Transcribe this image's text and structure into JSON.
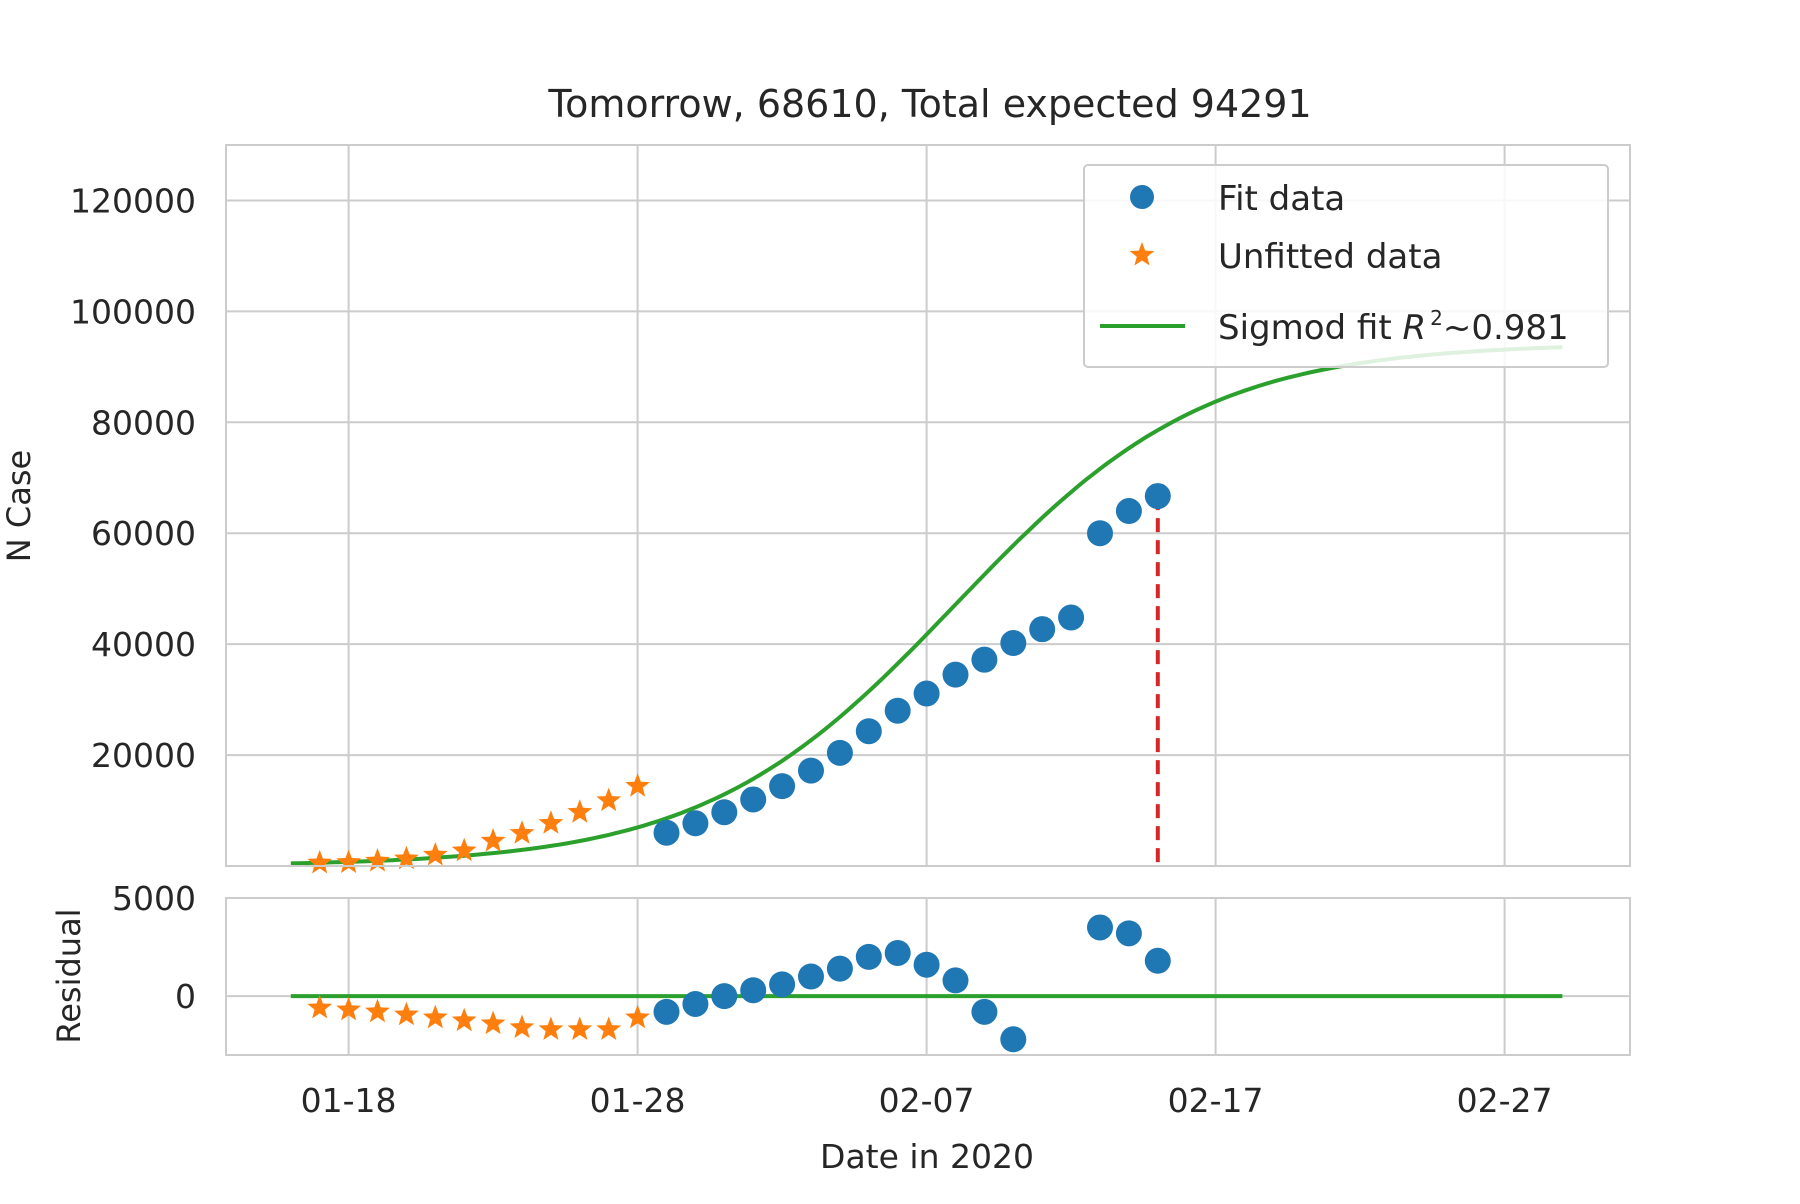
{
  "chart_data": {
    "type": "scatter",
    "title": "Tomorrow, 68610, Total expected 94291",
    "xlabel": "Date in 2020",
    "ylabel_main": "N Case",
    "ylabel_residual": "Residual",
    "x_dates": [
      "01-16",
      "01-17",
      "01-18",
      "01-19",
      "01-20",
      "01-21",
      "01-22",
      "01-23",
      "01-24",
      "01-25",
      "01-26",
      "01-27",
      "01-28",
      "01-29",
      "01-30",
      "01-31",
      "02-01",
      "02-02",
      "02-03",
      "02-04",
      "02-05",
      "02-06",
      "02-07",
      "02-08",
      "02-09",
      "02-10",
      "02-11",
      "02-12",
      "02-13",
      "02-14",
      "02-15",
      "02-16",
      "02-17",
      "02-18",
      "02-19",
      "02-20",
      "02-21",
      "02-22",
      "02-23",
      "02-24",
      "02-25",
      "02-26",
      "02-27",
      "02-28",
      "02-29"
    ],
    "x_tick_labels": [
      "01-18",
      "01-28",
      "02-07",
      "02-17",
      "02-27"
    ],
    "main_ylim": [
      0,
      130000
    ],
    "main_yticks": [
      20000,
      40000,
      60000,
      80000,
      100000,
      120000
    ],
    "residual_ylim": [
      -3000,
      5000
    ],
    "residual_yticks": [
      0,
      5000
    ],
    "grid": true,
    "legend_placement": "top-right",
    "legend": {
      "fit": "Fit data",
      "unfitted": "Unfitted data",
      "sigmoid_prefix": "Sigmod fit ",
      "sigmoid_r": "R",
      "sigmoid_sup": "2",
      "sigmoid_suffix": "~0.981"
    },
    "colors": {
      "fit": "#1f77b4",
      "unfitted": "#ff7f0e",
      "sigmoid": "#2ca02c",
      "marker_line": "#d62728"
    },
    "marker_line_date": "02-15",
    "sigmoid": {
      "L": 94291,
      "x0_date": "02-08",
      "k": 0.23
    },
    "series": [
      {
        "name": "Unfitted data",
        "dates": [
          "01-17",
          "01-18",
          "01-19",
          "01-20",
          "01-21",
          "01-22",
          "01-23",
          "01-24",
          "01-25",
          "01-26",
          "01-27",
          "01-28"
        ],
        "values": [
          550,
          640,
          900,
          1300,
          1980,
          2750,
          4500,
          5900,
          7700,
          9700,
          11800,
          14400
        ],
        "residuals": [
          -600,
          -700,
          -800,
          -950,
          -1100,
          -1250,
          -1400,
          -1600,
          -1700,
          -1700,
          -1700,
          -1100
        ]
      },
      {
        "name": "Fit data",
        "dates": [
          "01-29",
          "01-30",
          "01-31",
          "02-01",
          "02-02",
          "02-03",
          "02-04",
          "02-05",
          "02-06",
          "02-07",
          "02-08",
          "02-09",
          "02-10",
          "02-11",
          "02-12",
          "02-13",
          "02-14",
          "02-15"
        ],
        "values": [
          6000,
          7700,
          9700,
          12000,
          14400,
          17200,
          20400,
          24300,
          28000,
          31100,
          34500,
          37200,
          40200,
          42700,
          44800,
          60000,
          64000,
          66700
        ],
        "residuals": [
          -800,
          -400,
          0,
          300,
          600,
          1000,
          1400,
          2000,
          2200,
          1600,
          800,
          -800,
          -2200,
          null,
          null,
          3500,
          3200,
          1800
        ]
      }
    ]
  }
}
